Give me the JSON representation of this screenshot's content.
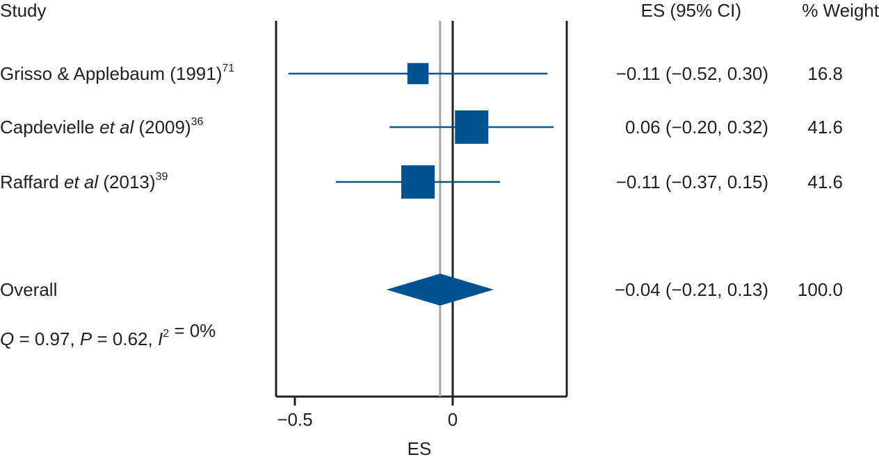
{
  "chart_data": {
    "type": "forest",
    "headers": {
      "study": "Study",
      "es_ci": "ES (95% CI)",
      "weight": "% Weight"
    },
    "xlabel": "ES",
    "xlim": [
      -0.56,
      0.37
    ],
    "xticks": [
      -0.5,
      0
    ],
    "xtick_labels": [
      "−0.5",
      "0"
    ],
    "reference_line": 0,
    "overall_line": -0.04,
    "colors": {
      "marker": "#005392",
      "axis": "#231f20",
      "overall_ref": "#a6a6a6"
    },
    "studies": [
      {
        "name": "Grisso & Applebaum (1991)",
        "name_parts": [
          {
            "t": "Grisso & Applebaum (1991)",
            "i": false
          }
        ],
        "ref": "71",
        "es": -0.11,
        "lo": -0.52,
        "hi": 0.3,
        "es_ci_text": "−0.11 (−0.52, 0.30)",
        "weight": 16.8,
        "weight_text": "16.8"
      },
      {
        "name": "Capdevielle et al (2009)",
        "name_parts": [
          {
            "t": "Capdevielle ",
            "i": false
          },
          {
            "t": "et al",
            "i": true
          },
          {
            "t": " (2009)",
            "i": false
          }
        ],
        "ref": "36",
        "es": 0.06,
        "lo": -0.2,
        "hi": 0.32,
        "es_ci_text": "0.06 (−0.20, 0.32)",
        "weight": 41.6,
        "weight_text": "41.6"
      },
      {
        "name": "Raffard et al (2013)",
        "name_parts": [
          {
            "t": "Raffard ",
            "i": false
          },
          {
            "t": "et al",
            "i": true
          },
          {
            "t": " (2013)",
            "i": false
          }
        ],
        "ref": "39",
        "es": -0.11,
        "lo": -0.37,
        "hi": 0.15,
        "es_ci_text": "−0.11 (−0.37, 0.15)",
        "weight": 41.6,
        "weight_text": "41.6"
      }
    ],
    "overall": {
      "name": "Overall",
      "es": -0.04,
      "lo": -0.21,
      "hi": 0.13,
      "es_ci_text": "−0.04 (−0.21, 0.13)",
      "weight_text": "100.0"
    },
    "heterogeneity": [
      {
        "t": "Q",
        "i": true
      },
      {
        "t": " = 0.97, ",
        "i": false
      },
      {
        "t": "P",
        "i": true
      },
      {
        "t": " = 0.62, ",
        "i": false
      },
      {
        "t": "I",
        "i": true
      },
      {
        "t": "2",
        "i": false,
        "sup": true
      },
      {
        "t": " = 0%",
        "i": false
      }
    ]
  }
}
